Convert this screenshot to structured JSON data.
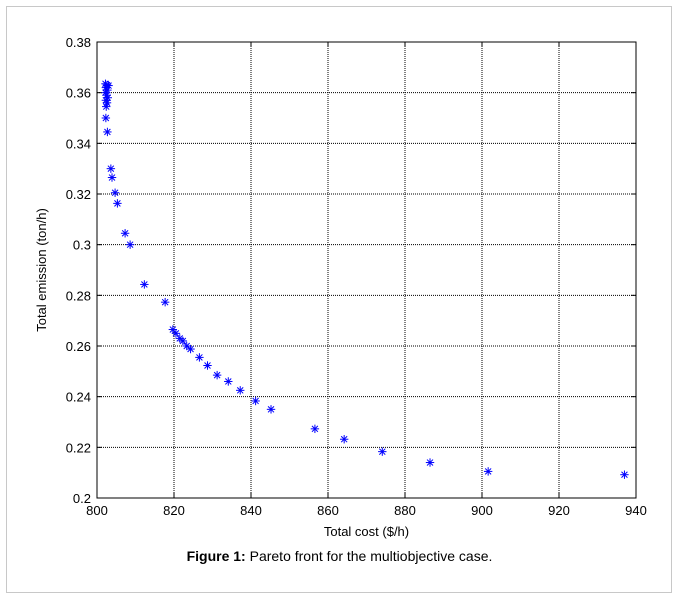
{
  "chart_data": {
    "type": "scatter",
    "xlabel": "Total cost ($/h)",
    "ylabel": "Total emission (ton/h)",
    "xlim": [
      800,
      940
    ],
    "ylim": [
      0.2,
      0.38
    ],
    "xticks": [
      "800",
      "820",
      "840",
      "860",
      "880",
      "900",
      "920",
      "940"
    ],
    "yticks": [
      "0.2",
      "0.22",
      "0.24",
      "0.26",
      "0.28",
      "0.3",
      "0.32",
      "0.34",
      "0.36",
      "0.38"
    ],
    "grid": true,
    "marker": "asterisk",
    "marker_color": "#0000ff",
    "series": [
      {
        "points": [
          [
            802.2,
            0.3635
          ],
          [
            802.6,
            0.363
          ],
          [
            803.0,
            0.3628
          ],
          [
            802.3,
            0.362
          ],
          [
            802.7,
            0.361
          ],
          [
            802.2,
            0.36
          ],
          [
            802.5,
            0.359
          ],
          [
            802.8,
            0.358
          ],
          [
            802.3,
            0.357
          ],
          [
            802.6,
            0.356
          ],
          [
            802.4,
            0.3545
          ],
          [
            802.3,
            0.35
          ],
          [
            802.7,
            0.3445
          ],
          [
            803.6,
            0.33
          ],
          [
            803.9,
            0.3265
          ],
          [
            804.7,
            0.3205
          ],
          [
            805.3,
            0.3163
          ],
          [
            807.3,
            0.3045
          ],
          [
            808.6,
            0.3
          ],
          [
            812.3,
            0.2843
          ],
          [
            817.7,
            0.2773
          ],
          [
            819.7,
            0.2665
          ],
          [
            820.5,
            0.265
          ],
          [
            821.5,
            0.263
          ],
          [
            822.3,
            0.262
          ],
          [
            823.3,
            0.26
          ],
          [
            824.3,
            0.2588
          ],
          [
            826.6,
            0.2555
          ],
          [
            828.7,
            0.2523
          ],
          [
            831.2,
            0.2485
          ],
          [
            834.1,
            0.246
          ],
          [
            837.2,
            0.2425
          ],
          [
            841.2,
            0.2383
          ],
          [
            845.2,
            0.235
          ],
          [
            856.6,
            0.2273
          ],
          [
            864.2,
            0.2232
          ],
          [
            874.1,
            0.2183
          ],
          [
            886.5,
            0.214
          ],
          [
            901.6,
            0.2105
          ],
          [
            937.0,
            0.2092
          ]
        ]
      }
    ]
  },
  "caption": {
    "label": "Figure 1:",
    "text": " Pareto front for the multiobjective case."
  }
}
